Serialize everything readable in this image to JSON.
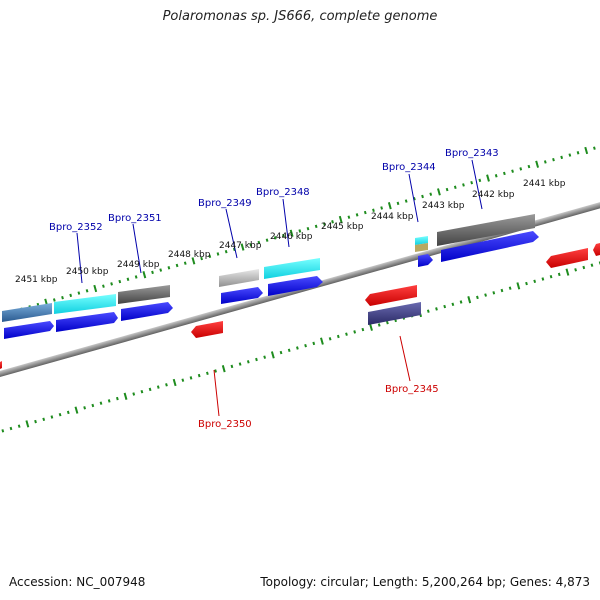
{
  "title": "Polaromonas sp. JS666, complete genome",
  "accession": "Accession: NC_007948",
  "summary": "Topology: circular; Length: 5,200,264 bp; Genes: 4,873",
  "kbp_labels": [
    "2451 kbp",
    "2450 kbp",
    "2449 kbp",
    "2448 kbp",
    "2447 kbp",
    "2446 kbp",
    "2445 kbp",
    "2444 kbp",
    "2443 kbp",
    "2442 kbp",
    "2441 kbp"
  ],
  "gene_labels_top": [
    "Bpro_2352",
    "Bpro_2351",
    "Bpro_2349",
    "Bpro_2348",
    "Bpro_2344",
    "Bpro_2343"
  ],
  "gene_labels_bottom": [
    "Bpro_2350",
    "Bpro_2345"
  ],
  "colors": {
    "forward_gene": "#1010e0",
    "reverse_gene": "#e01010",
    "label_forward": "#0000aa",
    "label_reverse": "#cc0000",
    "tick": "#1e8c1e",
    "backbone": "#8a8a8a"
  }
}
